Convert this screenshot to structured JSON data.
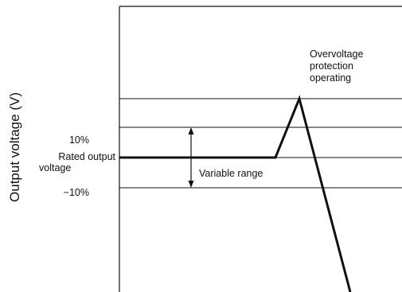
{
  "axis": {
    "y_label": "Output voltage (V)"
  },
  "labels": {
    "plus_10": "10%",
    "rated_line_1": "Rated output",
    "rated_line_2": "voltage",
    "minus_10": "−10%",
    "variable_range": "Variable range",
    "ovp_line_1": "Overvoltage",
    "ovp_line_2": "protection",
    "ovp_line_3": "operating"
  },
  "colors": {
    "line": "#111111",
    "background": "#ffffff"
  }
}
